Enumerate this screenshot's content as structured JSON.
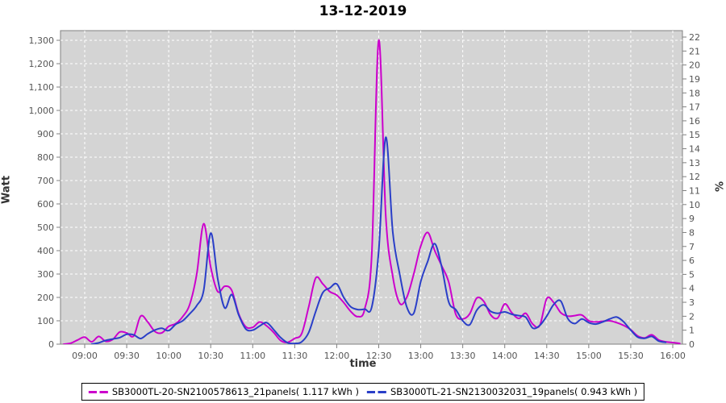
{
  "chart_data": {
    "type": "line",
    "title": "13-12-2019",
    "x_axis": {
      "label": "time",
      "ticks": [
        "09:00",
        "09:30",
        "10:00",
        "10:30",
        "11:00",
        "11:30",
        "12:00",
        "12:30",
        "13:00",
        "13:30",
        "14:00",
        "14:30",
        "15:00",
        "15:30",
        "16:00"
      ]
    },
    "y_axis_left": {
      "label": "Watt",
      "min": 0,
      "max": 1300,
      "tick_labels": [
        "0",
        "100",
        "200",
        "300",
        "400",
        "500",
        "600",
        "700",
        "800",
        "900",
        "1,000",
        "1,100",
        "1,200",
        "1,300"
      ]
    },
    "y_axis_right": {
      "label": "%",
      "min": 0,
      "max": 22,
      "tick_labels": [
        "0",
        "1",
        "2",
        "3",
        "4",
        "5",
        "6",
        "7",
        "8",
        "9",
        "10",
        "11",
        "12",
        "13",
        "14",
        "15",
        "16",
        "17",
        "18",
        "19",
        "20",
        "21",
        "22"
      ]
    },
    "grid": "on",
    "legend_position": "bottom",
    "colors": {
      "plot_background": "#d4d4d4",
      "gridline": "#ffffff",
      "axis": "#808080",
      "tick_text": "#555555",
      "series1": "#cc00cc",
      "series2": "#2a3fc8"
    },
    "series": [
      {
        "name": "SB3000TL-20-SN2100578613_21panels( 1.117 kWh )",
        "energy_kwh": "1.117 kWh",
        "color": "#cc00cc",
        "points": [
          [
            "08:45",
            0
          ],
          [
            "08:50",
            4
          ],
          [
            "08:55",
            18
          ],
          [
            "09:00",
            30
          ],
          [
            "09:05",
            10
          ],
          [
            "09:10",
            33
          ],
          [
            "09:15",
            12
          ],
          [
            "09:20",
            20
          ],
          [
            "09:25",
            52
          ],
          [
            "09:30",
            48
          ],
          [
            "09:35",
            35
          ],
          [
            "09:40",
            120
          ],
          [
            "09:45",
            95
          ],
          [
            "09:50",
            55
          ],
          [
            "09:55",
            48
          ],
          [
            "10:00",
            76
          ],
          [
            "10:05",
            88
          ],
          [
            "10:10",
            118
          ],
          [
            "10:15",
            170
          ],
          [
            "10:20",
            300
          ],
          [
            "10:25",
            515
          ],
          [
            "10:30",
            330
          ],
          [
            "10:35",
            225
          ],
          [
            "10:40",
            248
          ],
          [
            "10:45",
            230
          ],
          [
            "10:50",
            130
          ],
          [
            "10:55",
            75
          ],
          [
            "11:00",
            72
          ],
          [
            "11:05",
            95
          ],
          [
            "11:10",
            78
          ],
          [
            "11:15",
            50
          ],
          [
            "11:20",
            15
          ],
          [
            "11:25",
            8
          ],
          [
            "11:30",
            25
          ],
          [
            "11:35",
            45
          ],
          [
            "11:40",
            160
          ],
          [
            "11:45",
            283
          ],
          [
            "11:50",
            258
          ],
          [
            "11:55",
            225
          ],
          [
            "12:00",
            210
          ],
          [
            "12:05",
            178
          ],
          [
            "12:10",
            140
          ],
          [
            "12:15",
            118
          ],
          [
            "12:20",
            150
          ],
          [
            "12:25",
            380
          ],
          [
            "12:30",
            1300
          ],
          [
            "12:35",
            550
          ],
          [
            "12:40",
            290
          ],
          [
            "12:45",
            175
          ],
          [
            "12:50",
            200
          ],
          [
            "12:55",
            300
          ],
          [
            "13:00",
            420
          ],
          [
            "13:05",
            478
          ],
          [
            "13:10",
            400
          ],
          [
            "13:15",
            335
          ],
          [
            "13:20",
            265
          ],
          [
            "13:25",
            128
          ],
          [
            "13:30",
            108
          ],
          [
            "13:35",
            130
          ],
          [
            "13:40",
            197
          ],
          [
            "13:45",
            183
          ],
          [
            "13:50",
            125
          ],
          [
            "13:55",
            112
          ],
          [
            "14:00",
            172
          ],
          [
            "14:05",
            135
          ],
          [
            "14:10",
            110
          ],
          [
            "14:15",
            132
          ],
          [
            "14:20",
            86
          ],
          [
            "14:25",
            80
          ],
          [
            "14:30",
            195
          ],
          [
            "14:35",
            178
          ],
          [
            "14:40",
            135
          ],
          [
            "14:45",
            120
          ],
          [
            "14:50",
            122
          ],
          [
            "14:55",
            125
          ],
          [
            "15:00",
            100
          ],
          [
            "15:05",
            95
          ],
          [
            "15:10",
            98
          ],
          [
            "15:15",
            100
          ],
          [
            "15:20",
            92
          ],
          [
            "15:25",
            80
          ],
          [
            "15:30",
            62
          ],
          [
            "15:35",
            35
          ],
          [
            "15:40",
            27
          ],
          [
            "15:45",
            40
          ],
          [
            "15:50",
            18
          ],
          [
            "15:55",
            10
          ],
          [
            "16:00",
            7
          ],
          [
            "16:05",
            3
          ]
        ]
      },
      {
        "name": "SB3000TL-21-SN2130032031_19panels( 0.943 kWh )",
        "energy_kwh": "0.943 kWh",
        "color": "#2a3fc8",
        "points": [
          [
            "09:05",
            0
          ],
          [
            "09:10",
            6
          ],
          [
            "09:15",
            16
          ],
          [
            "09:20",
            22
          ],
          [
            "09:25",
            28
          ],
          [
            "09:30",
            42
          ],
          [
            "09:35",
            40
          ],
          [
            "09:40",
            24
          ],
          [
            "09:45",
            44
          ],
          [
            "09:50",
            60
          ],
          [
            "09:55",
            68
          ],
          [
            "10:00",
            58
          ],
          [
            "10:05",
            85
          ],
          [
            "10:10",
            100
          ],
          [
            "10:15",
            130
          ],
          [
            "10:20",
            165
          ],
          [
            "10:25",
            230
          ],
          [
            "10:30",
            475
          ],
          [
            "10:35",
            280
          ],
          [
            "10:40",
            155
          ],
          [
            "10:45",
            212
          ],
          [
            "10:50",
            125
          ],
          [
            "10:55",
            65
          ],
          [
            "11:00",
            60
          ],
          [
            "11:05",
            78
          ],
          [
            "11:10",
            92
          ],
          [
            "11:15",
            62
          ],
          [
            "11:20",
            28
          ],
          [
            "11:25",
            6
          ],
          [
            "11:30",
            3
          ],
          [
            "11:35",
            10
          ],
          [
            "11:40",
            50
          ],
          [
            "11:45",
            140
          ],
          [
            "11:50",
            220
          ],
          [
            "11:55",
            240
          ],
          [
            "12:00",
            258
          ],
          [
            "12:05",
            200
          ],
          [
            "12:10",
            160
          ],
          [
            "12:15",
            148
          ],
          [
            "12:20",
            150
          ],
          [
            "12:25",
            158
          ],
          [
            "12:30",
            400
          ],
          [
            "12:35",
            885
          ],
          [
            "12:40",
            480
          ],
          [
            "12:45",
            300
          ],
          [
            "12:50",
            160
          ],
          [
            "12:55",
            132
          ],
          [
            "13:00",
            268
          ],
          [
            "13:05",
            355
          ],
          [
            "13:10",
            430
          ],
          [
            "13:15",
            330
          ],
          [
            "13:20",
            180
          ],
          [
            "13:25",
            148
          ],
          [
            "13:30",
            100
          ],
          [
            "13:35",
            83
          ],
          [
            "13:40",
            145
          ],
          [
            "13:45",
            168
          ],
          [
            "13:50",
            140
          ],
          [
            "13:55",
            132
          ],
          [
            "14:00",
            138
          ],
          [
            "14:05",
            128
          ],
          [
            "14:10",
            122
          ],
          [
            "14:15",
            115
          ],
          [
            "14:20",
            69
          ],
          [
            "14:25",
            80
          ],
          [
            "14:30",
            120
          ],
          [
            "14:35",
            170
          ],
          [
            "14:40",
            185
          ],
          [
            "14:45",
            110
          ],
          [
            "14:50",
            88
          ],
          [
            "14:55",
            108
          ],
          [
            "15:00",
            92
          ],
          [
            "15:05",
            86
          ],
          [
            "15:10",
            95
          ],
          [
            "15:15",
            108
          ],
          [
            "15:20",
            116
          ],
          [
            "15:25",
            95
          ],
          [
            "15:30",
            60
          ],
          [
            "15:35",
            30
          ],
          [
            "15:40",
            25
          ],
          [
            "15:45",
            33
          ],
          [
            "15:50",
            13
          ],
          [
            "15:55",
            8
          ]
        ]
      }
    ]
  }
}
